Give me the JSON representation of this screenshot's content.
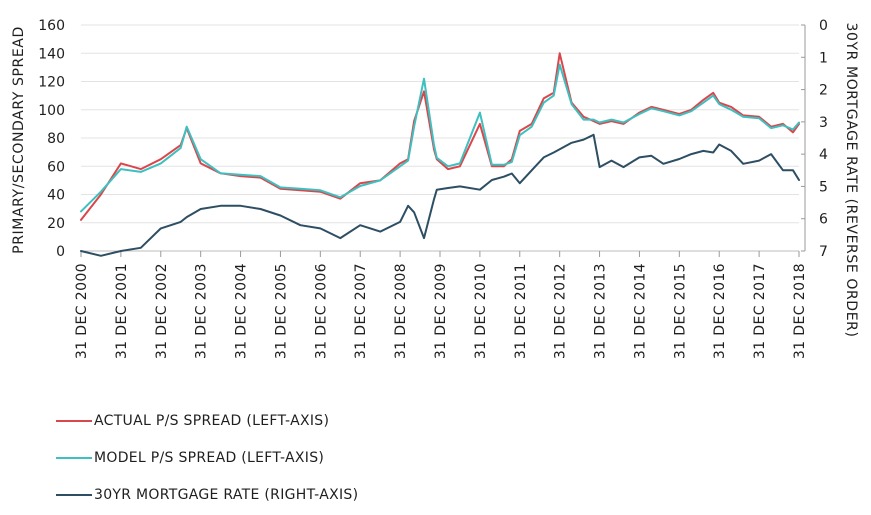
{
  "chart_data": {
    "type": "line",
    "ylabel_left": "PRIMARY/SECONDARY SPREAD",
    "ylabel_right": "30YR MORTGAGE RATE (REVERSE ORDER)",
    "ylim_left": [
      0,
      160
    ],
    "yticks_left": [
      "0",
      "20",
      "40",
      "60",
      "80",
      "100",
      "120",
      "140",
      "160"
    ],
    "ylim_right": [
      0,
      7
    ],
    "right_axis_reversed": true,
    "yticks_right": [
      "0",
      "1",
      "2",
      "3",
      "4",
      "5",
      "6",
      "7"
    ],
    "x_tick_labels": [
      "31 DEC 2000",
      "31 DEC 2001",
      "31 DEC 2002",
      "31 DEC 2003",
      "31 DEC 2004",
      "31 DEC 2005",
      "31 DEC 2006",
      "31 DEC 2007",
      "31 DEC 2008",
      "31 DEC 2009",
      "31 DEC 2010",
      "31 DEC 2011",
      "31 DEC 2012",
      "31 DEC 2013",
      "31 DEC 2014",
      "31 DEC 2015",
      "31 DEC 2016",
      "31 DEC 2017",
      "31 DEC 2018"
    ],
    "grid": true,
    "legend_position": "bottom-left",
    "colors": {
      "actual": "#d9474c",
      "model": "#3fbfbf",
      "mortgage": "#2d4e63",
      "grid": "#e3e3e3"
    },
    "x": [
      2000.0,
      2000.5,
      2001.0,
      2001.5,
      2002.0,
      2002.5,
      2002.65,
      2003.0,
      2003.5,
      2004.0,
      2004.5,
      2005.0,
      2005.5,
      2006.0,
      2006.5,
      2007.0,
      2007.5,
      2008.0,
      2008.2,
      2008.35,
      2008.6,
      2008.85,
      2008.92,
      2009.2,
      2009.5,
      2010.0,
      2010.3,
      2010.6,
      2010.8,
      2011.0,
      2011.3,
      2011.6,
      2011.85,
      2012.0,
      2012.3,
      2012.6,
      2012.85,
      2013.0,
      2013.3,
      2013.6,
      2014.0,
      2014.3,
      2014.6,
      2015.0,
      2015.3,
      2015.6,
      2015.85,
      2016.0,
      2016.3,
      2016.6,
      2017.0,
      2017.3,
      2017.6,
      2017.85,
      2018.0
    ],
    "series": [
      {
        "name": "ACTUAL P/S SPREAD (LEFT-AXIS)",
        "axis": "left",
        "values": [
          22,
          40,
          62,
          58,
          65,
          75,
          87,
          62,
          55,
          53,
          52,
          44,
          43,
          42,
          37,
          48,
          50,
          62,
          65,
          92,
          113,
          72,
          65,
          58,
          60,
          90,
          60,
          60,
          65,
          85,
          90,
          108,
          112,
          140,
          105,
          95,
          92,
          90,
          92,
          90,
          98,
          102,
          100,
          97,
          100,
          107,
          112,
          105,
          102,
          96,
          95,
          88,
          90,
          84,
          90
        ]
      },
      {
        "name": "MODEL P/S SPREAD (LEFT-AXIS)",
        "axis": "left",
        "values": [
          28,
          42,
          58,
          56,
          62,
          73,
          88,
          65,
          55,
          54,
          53,
          45,
          44,
          43,
          38,
          46,
          50,
          60,
          64,
          88,
          122,
          75,
          66,
          60,
          62,
          98,
          61,
          61,
          63,
          82,
          88,
          105,
          110,
          132,
          104,
          93,
          93,
          91,
          93,
          91,
          97,
          101,
          99,
          96,
          99,
          105,
          110,
          104,
          100,
          95,
          94,
          87,
          89,
          86,
          91
        ]
      },
      {
        "name": "30YR MORTGAGE RATE (RIGHT-AXIS)",
        "axis": "right",
        "values": [
          7.0,
          7.15,
          7.0,
          6.9,
          6.3,
          6.1,
          5.95,
          5.7,
          5.6,
          5.6,
          5.7,
          5.9,
          6.2,
          6.3,
          6.6,
          6.2,
          6.4,
          6.1,
          5.6,
          5.8,
          6.6,
          5.4,
          5.1,
          5.05,
          5.0,
          5.1,
          4.8,
          4.7,
          4.6,
          4.9,
          4.5,
          4.1,
          3.95,
          3.85,
          3.65,
          3.55,
          3.4,
          4.4,
          4.2,
          4.4,
          4.1,
          4.05,
          4.3,
          4.15,
          4.0,
          3.9,
          3.95,
          3.7,
          3.9,
          4.3,
          4.2,
          4.0,
          4.5,
          4.5,
          4.8
        ]
      }
    ]
  }
}
